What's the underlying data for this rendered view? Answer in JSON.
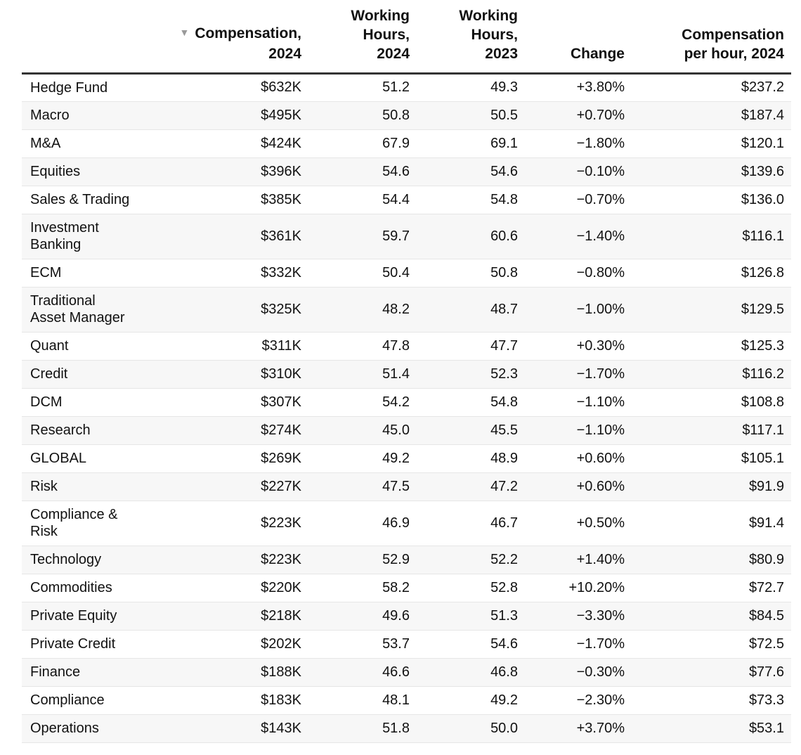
{
  "chart_data": {
    "type": "table",
    "sort": {
      "column": 1,
      "direction": "descending"
    },
    "columns": [
      {
        "lines": [
          ""
        ]
      },
      {
        "lines": [
          "Compensation,",
          "2024"
        ]
      },
      {
        "lines": [
          "Working",
          "Hours,",
          "2024"
        ]
      },
      {
        "lines": [
          "Working",
          "Hours,",
          "2023"
        ]
      },
      {
        "lines": [
          "Change"
        ]
      },
      {
        "lines": [
          "Compensation",
          "per hour, 2024"
        ]
      }
    ],
    "rows": [
      {
        "name": "Hedge Fund",
        "comp": "$632K",
        "hours_2024": "51.2",
        "hours_2023": "49.3",
        "change": "+3.80%",
        "comp_per_hour": "$237.2"
      },
      {
        "name": "Macro",
        "comp": "$495K",
        "hours_2024": "50.8",
        "hours_2023": "50.5",
        "change": "+0.70%",
        "comp_per_hour": "$187.4"
      },
      {
        "name": "M&A",
        "comp": "$424K",
        "hours_2024": "67.9",
        "hours_2023": "69.1",
        "change": "−1.80%",
        "comp_per_hour": "$120.1"
      },
      {
        "name": "Equities",
        "comp": "$396K",
        "hours_2024": "54.6",
        "hours_2023": "54.6",
        "change": "−0.10%",
        "comp_per_hour": "$139.6"
      },
      {
        "name": "Sales & Trading",
        "comp": "$385K",
        "hours_2024": "54.4",
        "hours_2023": "54.8",
        "change": "−0.70%",
        "comp_per_hour": "$136.0"
      },
      {
        "name": "Investment Banking",
        "name_lines": [
          "Investment",
          "Banking"
        ],
        "comp": "$361K",
        "hours_2024": "59.7",
        "hours_2023": "60.6",
        "change": "−1.40%",
        "comp_per_hour": "$116.1"
      },
      {
        "name": "ECM",
        "comp": "$332K",
        "hours_2024": "50.4",
        "hours_2023": "50.8",
        "change": "−0.80%",
        "comp_per_hour": "$126.8"
      },
      {
        "name": "Traditional Asset Manager",
        "name_lines": [
          "Traditional",
          "Asset Manager"
        ],
        "comp": "$325K",
        "hours_2024": "48.2",
        "hours_2023": "48.7",
        "change": "−1.00%",
        "comp_per_hour": "$129.5"
      },
      {
        "name": "Quant",
        "comp": "$311K",
        "hours_2024": "47.8",
        "hours_2023": "47.7",
        "change": "+0.30%",
        "comp_per_hour": "$125.3"
      },
      {
        "name": "Credit",
        "comp": "$310K",
        "hours_2024": "51.4",
        "hours_2023": "52.3",
        "change": "−1.70%",
        "comp_per_hour": "$116.2"
      },
      {
        "name": "DCM",
        "comp": "$307K",
        "hours_2024": "54.2",
        "hours_2023": "54.8",
        "change": "−1.10%",
        "comp_per_hour": "$108.8"
      },
      {
        "name": "Research",
        "comp": "$274K",
        "hours_2024": "45.0",
        "hours_2023": "45.5",
        "change": "−1.10%",
        "comp_per_hour": "$117.1"
      },
      {
        "name": "GLOBAL",
        "comp": "$269K",
        "hours_2024": "49.2",
        "hours_2023": "48.9",
        "change": "+0.60%",
        "comp_per_hour": "$105.1"
      },
      {
        "name": "Risk",
        "comp": "$227K",
        "hours_2024": "47.5",
        "hours_2023": "47.2",
        "change": "+0.60%",
        "comp_per_hour": "$91.9"
      },
      {
        "name": "Compliance & Risk",
        "name_lines": [
          "Compliance &",
          "Risk"
        ],
        "comp": "$223K",
        "hours_2024": "46.9",
        "hours_2023": "46.7",
        "change": "+0.50%",
        "comp_per_hour": "$91.4"
      },
      {
        "name": "Technology",
        "comp": "$223K",
        "hours_2024": "52.9",
        "hours_2023": "52.2",
        "change": "+1.40%",
        "comp_per_hour": "$80.9"
      },
      {
        "name": "Commodities",
        "comp": "$220K",
        "hours_2024": "58.2",
        "hours_2023": "52.8",
        "change": "+10.20%",
        "comp_per_hour": "$72.7"
      },
      {
        "name": "Private Equity",
        "comp": "$218K",
        "hours_2024": "49.6",
        "hours_2023": "51.3",
        "change": "−3.30%",
        "comp_per_hour": "$84.5"
      },
      {
        "name": "Private Credit",
        "comp": "$202K",
        "hours_2024": "53.7",
        "hours_2023": "54.6",
        "change": "−1.70%",
        "comp_per_hour": "$72.5"
      },
      {
        "name": "Finance",
        "comp": "$188K",
        "hours_2024": "46.6",
        "hours_2023": "46.8",
        "change": "−0.30%",
        "comp_per_hour": "$77.6"
      },
      {
        "name": "Compliance",
        "comp": "$183K",
        "hours_2024": "48.1",
        "hours_2023": "49.2",
        "change": "−2.30%",
        "comp_per_hour": "$73.3"
      },
      {
        "name": "Operations",
        "comp": "$143K",
        "hours_2024": "51.8",
        "hours_2023": "50.0",
        "change": "+3.70%",
        "comp_per_hour": "$53.1"
      }
    ]
  },
  "icons": {
    "sort": "sort-descending-triangle-icon"
  },
  "colors": {
    "header_rule": "#333333",
    "row_stripe": "#f7f7f7",
    "row_divider": "#e6e6e6",
    "sort_icon": "#9a9a9a"
  }
}
